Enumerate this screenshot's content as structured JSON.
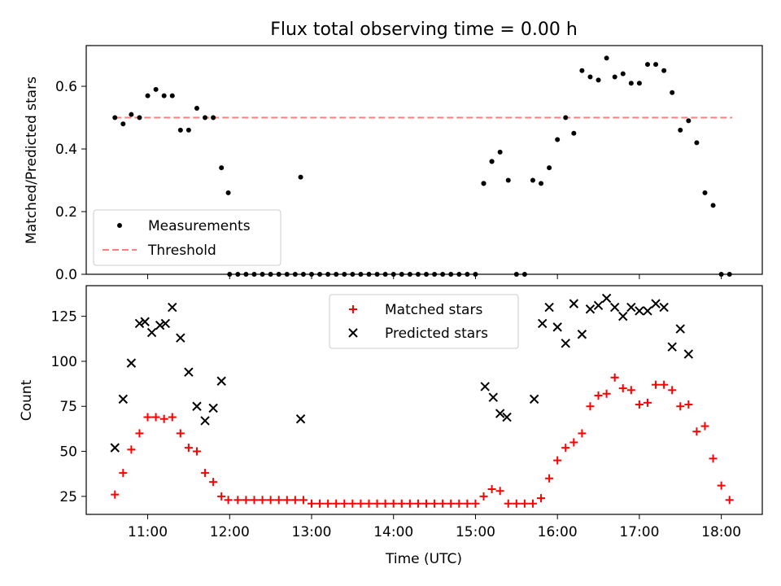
{
  "title": "Flux total observing time = 0.00 h",
  "xlabel": "Time (UTC)",
  "x_tick_labels": [
    "11:00",
    "12:00",
    "13:00",
    "14:00",
    "15:00",
    "16:00",
    "17:00",
    "18:00"
  ],
  "colors": {
    "measurement": "#000000",
    "threshold": "#ff7f7f",
    "matched": "#ff0000",
    "predicted": "#000000"
  },
  "chart_data": [
    {
      "type": "scatter",
      "ylabel": "Matched/Predicted stars",
      "y_tick_labels": [
        "0.0",
        "0.2",
        "0.4",
        "0.6"
      ],
      "xlim": [
        "10:15",
        "18:30"
      ],
      "ylim": [
        0,
        0.73
      ],
      "legend_placement": "lower-left",
      "legend": [
        "Measurements",
        "Threshold"
      ],
      "threshold": {
        "value": 0.5,
        "x_start": "10:36",
        "x_end": "18:08"
      },
      "measurements": {
        "x": [
          "10:36",
          "10:42",
          "10:48",
          "10:54",
          "11:00",
          "11:06",
          "11:12",
          "11:18",
          "11:24",
          "11:30",
          "11:36",
          "11:42",
          "11:48",
          "11:54",
          "11:59",
          "12:00",
          "12:06",
          "12:12",
          "12:18",
          "12:24",
          "12:30",
          "12:36",
          "12:42",
          "12:48",
          "12:54",
          "13:00",
          "13:06",
          "13:12",
          "13:18",
          "13:24",
          "13:30",
          "13:36",
          "13:42",
          "13:48",
          "13:54",
          "14:00",
          "14:06",
          "14:12",
          "14:18",
          "14:24",
          "14:30",
          "14:36",
          "14:42",
          "14:48",
          "14:54",
          "15:00",
          "15:06",
          "15:12",
          "15:18",
          "15:24",
          "15:30",
          "15:36",
          "15:42",
          "15:48",
          "15:54",
          "16:00",
          "16:06",
          "16:12",
          "16:18",
          "16:24",
          "16:30",
          "16:36",
          "16:42",
          "16:48",
          "16:54",
          "17:00",
          "17:06",
          "17:12",
          "17:18",
          "17:24",
          "17:30",
          "17:36",
          "17:42",
          "17:48",
          "17:54",
          "18:00",
          "18:06",
          "12:52",
          "15:06",
          "15:12"
        ],
        "y": [
          0.5,
          0.48,
          0.51,
          0.5,
          0.57,
          0.59,
          0.57,
          0.57,
          0.46,
          0.46,
          0.53,
          0.5,
          0.5,
          0.34,
          0.26,
          0,
          0,
          0,
          0,
          0,
          0,
          0,
          0,
          0,
          0,
          0,
          0,
          0,
          0,
          0,
          0,
          0,
          0,
          0,
          0,
          0,
          0,
          0,
          0,
          0,
          0,
          0,
          0,
          0,
          0,
          0,
          0.29,
          0.36,
          0.39,
          0.3,
          0,
          0,
          0.3,
          0.29,
          0.34,
          0.43,
          0.5,
          0.45,
          0.65,
          0.63,
          0.62,
          0.69,
          0.63,
          0.64,
          0.61,
          0.61,
          0.67,
          0.67,
          0.65,
          0.58,
          0.46,
          0.49,
          0.42,
          0.26,
          0.22,
          0,
          0,
          0.31,
          0.29,
          0.36
        ]
      }
    },
    {
      "type": "scatter",
      "ylabel": "Count",
      "y_tick_labels": [
        "25",
        "50",
        "75",
        "100",
        "125"
      ],
      "xlim": [
        "10:15",
        "18:30"
      ],
      "ylim": [
        15,
        142
      ],
      "legend_placement": "upper-center",
      "legend": [
        "Matched stars",
        "Predicted stars"
      ],
      "matched": {
        "x": [
          "10:36",
          "10:42",
          "10:48",
          "10:54",
          "11:00",
          "11:06",
          "11:12",
          "11:18",
          "11:24",
          "11:30",
          "11:36",
          "11:42",
          "11:48",
          "11:54",
          "11:59",
          "12:06",
          "12:12",
          "12:18",
          "12:24",
          "12:30",
          "12:36",
          "12:42",
          "12:48",
          "12:54",
          "13:00",
          "13:06",
          "13:12",
          "13:18",
          "13:24",
          "13:30",
          "13:36",
          "13:42",
          "13:48",
          "13:54",
          "14:00",
          "14:06",
          "14:12",
          "14:18",
          "14:24",
          "14:30",
          "14:36",
          "14:42",
          "14:48",
          "14:54",
          "15:00",
          "15:06",
          "15:12",
          "15:18",
          "15:24",
          "15:30",
          "15:36",
          "15:42",
          "15:48",
          "15:54",
          "16:00",
          "16:06",
          "16:12",
          "16:18",
          "16:24",
          "16:30",
          "16:36",
          "16:42",
          "16:48",
          "16:54",
          "17:00",
          "17:06",
          "17:12",
          "17:18",
          "17:24",
          "17:30",
          "17:36",
          "17:42",
          "17:48",
          "17:54",
          "18:00",
          "18:06"
        ],
        "y": [
          26,
          38,
          51,
          60,
          69,
          69,
          68,
          69,
          60,
          52,
          50,
          38,
          33,
          25,
          23,
          23,
          23,
          23,
          23,
          23,
          23,
          23,
          23,
          23,
          21,
          21,
          21,
          21,
          21,
          21,
          21,
          21,
          21,
          21,
          21,
          21,
          21,
          21,
          21,
          21,
          21,
          21,
          21,
          21,
          21,
          25,
          29,
          28,
          21,
          21,
          21,
          21,
          24,
          35,
          45,
          52,
          55,
          60,
          75,
          81,
          82,
          91,
          85,
          84,
          76,
          77,
          87,
          87,
          84,
          75,
          76,
          61,
          64,
          46,
          31,
          23
        ]
      },
      "predicted": {
        "x": [
          "10:36",
          "10:42",
          "10:48",
          "10:54",
          "10:58",
          "11:03",
          "11:09",
          "11:13",
          "11:18",
          "11:24",
          "11:30",
          "11:36",
          "11:42",
          "11:48",
          "11:54",
          "11:59",
          "12:52",
          "15:07",
          "15:13",
          "15:18",
          "15:23",
          "15:43",
          "15:49",
          "15:54",
          "16:00",
          "16:06",
          "16:12",
          "16:18",
          "16:24",
          "16:30",
          "16:36",
          "16:42",
          "16:48",
          "16:54",
          "17:00",
          "17:06",
          "17:12",
          "17:18",
          "17:24",
          "17:30",
          "17:36",
          "17:42",
          "17:48"
        ],
        "y": [
          52,
          79,
          99,
          121,
          122,
          116,
          120,
          121,
          130,
          113,
          94,
          75,
          67,
          74,
          89,
          null,
          68,
          86,
          80,
          71,
          69,
          79,
          121,
          130,
          119,
          110,
          132,
          115,
          129,
          131,
          135,
          130,
          125,
          130,
          128,
          128,
          132,
          130,
          108,
          118,
          104,
          null,
          null
        ]
      }
    }
  ]
}
